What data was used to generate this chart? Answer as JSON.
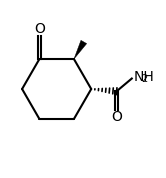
{
  "background_color": "#ffffff",
  "line_color": "#000000",
  "line_width": 1.5,
  "text_color": "#000000",
  "figsize": [
    1.66,
    1.78
  ],
  "dpi": 100,
  "O_ketone_label": "O",
  "NH2_label": "NH",
  "NH2_sub": "2",
  "O_amide_label": "O",
  "font_size_atom": 10,
  "font_size_sub": 7
}
